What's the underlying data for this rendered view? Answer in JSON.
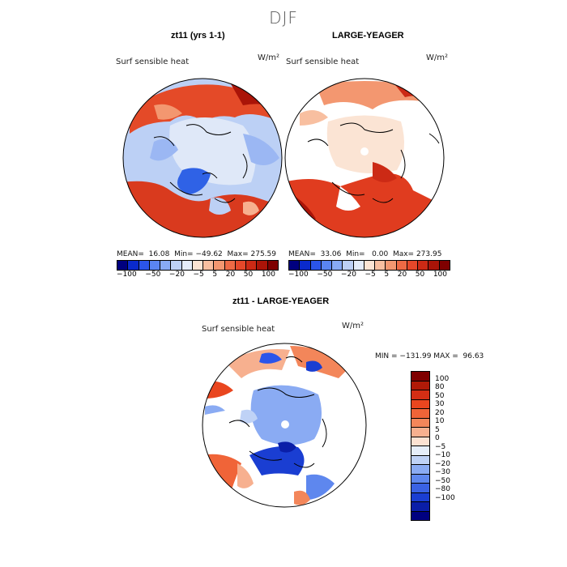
{
  "title": "DJF",
  "panels": [
    {
      "title": "zt11 (yrs 1-1)",
      "field": "Surf sensible heat",
      "unit": "W/m²",
      "stats": "MEAN=  16.08  Min= −49.62  Max= 275.59"
    },
    {
      "title": "LARGE-YEAGER",
      "field": "Surf sensible heat",
      "unit": "W/m²",
      "stats": "MEAN=  33.06  Min=   0.00  Max= 273.95"
    },
    {
      "title": "zt11 - LARGE-YEAGER",
      "field": "Surf sensible heat",
      "unit": "W/m²",
      "stats": "MIN = −131.99 MAX =  96.63"
    }
  ],
  "colorbar_top": {
    "ticks": [
      "−100",
      "−50",
      "−20",
      "−5",
      "5",
      "20",
      "50",
      "100"
    ],
    "colors": [
      "#00007f",
      "#0a2acc",
      "#2b55ea",
      "#5a85f2",
      "#88aaf5",
      "#bdd0f5",
      "#e4ecfa",
      "#fbe4d4",
      "#f8bfa0",
      "#f39770",
      "#ee6a45",
      "#e5482a",
      "#cc2a15",
      "#aa1408",
      "#7f0000"
    ]
  },
  "colorbar_diff": {
    "labels": [
      "100",
      "80",
      "50",
      "30",
      "20",
      "10",
      "5",
      "0",
      "−5",
      "−10",
      "−20",
      "−30",
      "−50",
      "−80",
      "−100"
    ],
    "colors": [
      "#7f0000",
      "#b01a08",
      "#d42e14",
      "#e9461f",
      "#f06438",
      "#f3865a",
      "#f7b08f",
      "#fce2d2",
      "#e6eef9",
      "#bfd2f6",
      "#8aabf3",
      "#5e87ee",
      "#3a62e4",
      "#1a3ed2",
      "#0a1ea8",
      "#000080"
    ]
  }
}
